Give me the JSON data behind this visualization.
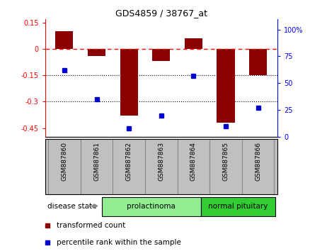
{
  "title": "GDS4859 / 38767_at",
  "samples": [
    "GSM887860",
    "GSM887861",
    "GSM887862",
    "GSM887863",
    "GSM887864",
    "GSM887865",
    "GSM887866"
  ],
  "bar_values": [
    0.1,
    -0.04,
    -0.38,
    -0.07,
    0.06,
    -0.42,
    -0.15
  ],
  "percentile_values": [
    62,
    35,
    8,
    20,
    57,
    10,
    27
  ],
  "ylim_left": [
    -0.5,
    0.17
  ],
  "ylim_right": [
    0,
    110
  ],
  "yticks_left": [
    0.15,
    0.0,
    -0.15,
    -0.3,
    -0.45
  ],
  "yticks_right": [
    100,
    75,
    50,
    25,
    0
  ],
  "bar_color": "#8B0000",
  "dot_color": "#0000CD",
  "hline_y": 0.0,
  "dotted_lines": [
    -0.15,
    -0.3
  ],
  "disease_groups": [
    {
      "label": "prolactinoma",
      "indices": [
        0,
        1,
        2,
        3
      ],
      "color": "#90EE90"
    },
    {
      "label": "normal pituitary",
      "indices": [
        4,
        5,
        6
      ],
      "color": "#32CD32"
    }
  ],
  "disease_state_label": "disease state",
  "legend_items": [
    {
      "label": "transformed count",
      "color": "#8B0000"
    },
    {
      "label": "percentile rank within the sample",
      "color": "#0000CD"
    }
  ],
  "background_color": "#ffffff",
  "bar_width": 0.55,
  "label_bg": "#c0c0c0",
  "label_border": "#888888"
}
